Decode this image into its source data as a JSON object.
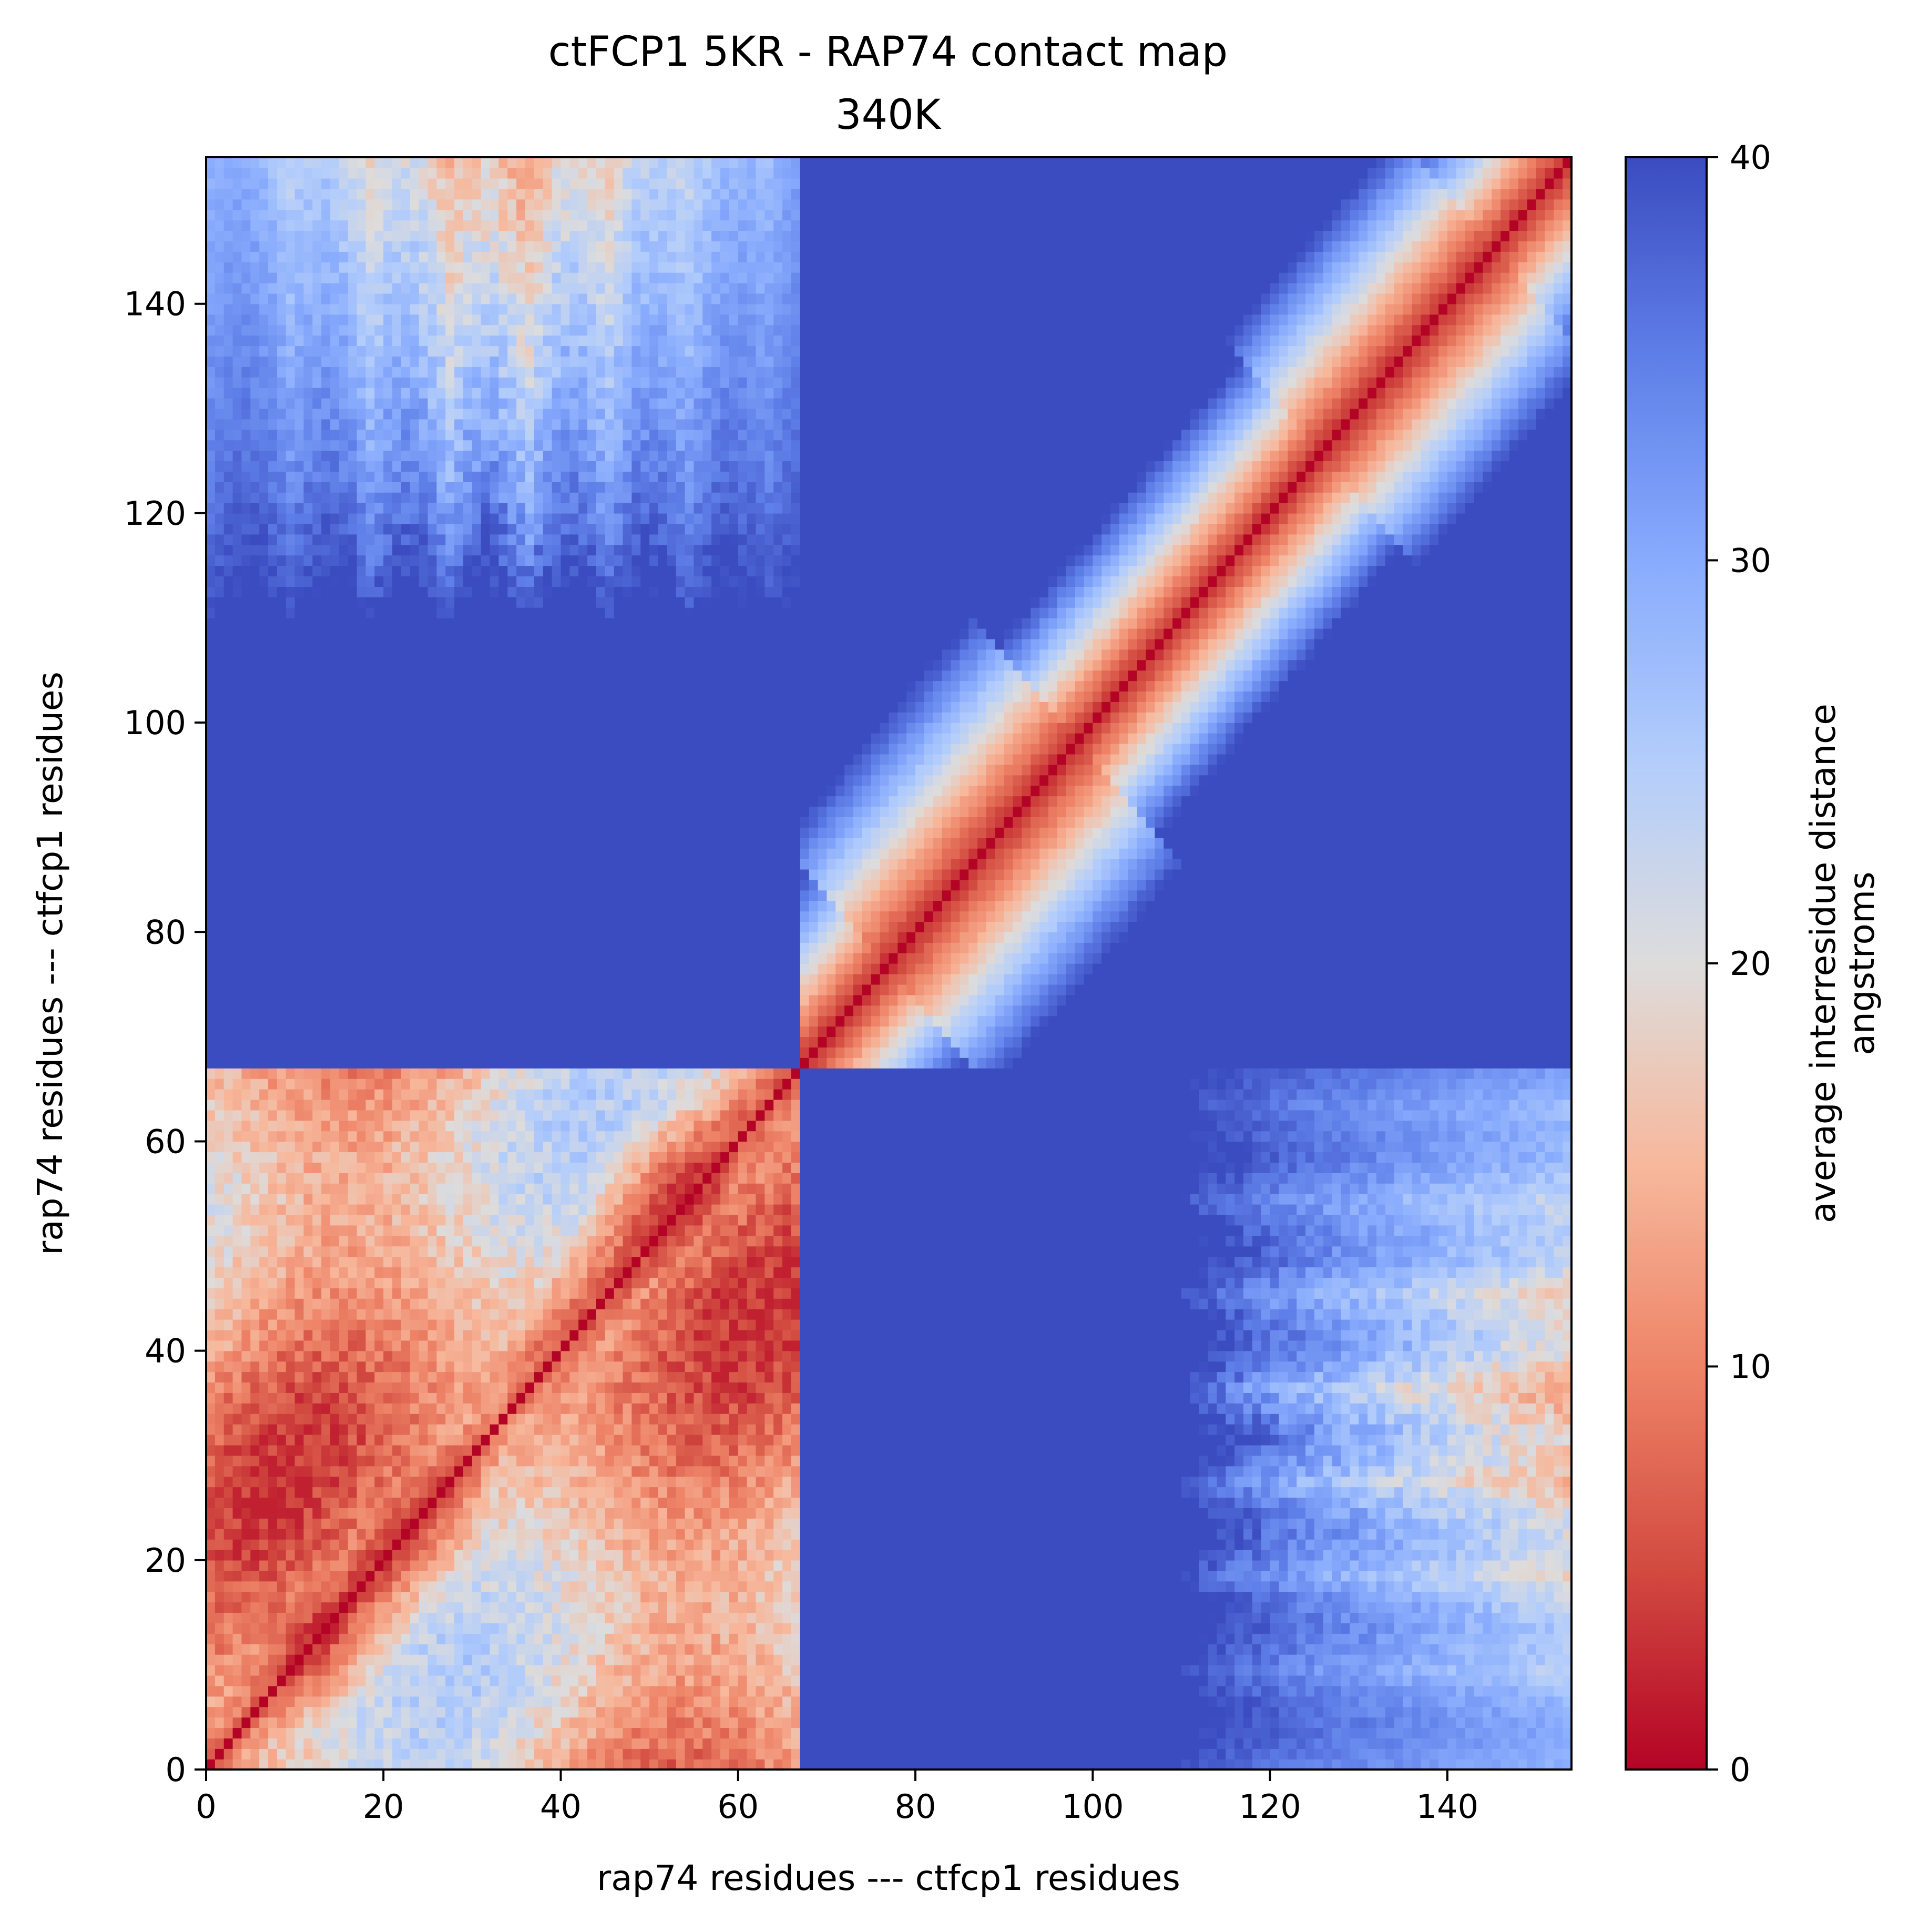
{
  "chart_data": {
    "type": "heatmap",
    "title": "ctFCP1 5KR - RAP74 contact map\n340K",
    "title_lines": [
      "ctFCP1 5KR - RAP74 contact map",
      "340K"
    ],
    "xlabel": "rap74 residues --- ctfcp1 residues",
    "ylabel": "rap74 residues --- ctfcp1 residues",
    "xlim": [
      0,
      154
    ],
    "ylim": [
      0,
      154
    ],
    "x_ticks": [
      0,
      20,
      40,
      60,
      80,
      100,
      120,
      140
    ],
    "x_tick_labels": [
      "0",
      "20",
      "40",
      "60",
      "80",
      "100",
      "120",
      "140"
    ],
    "y_ticks": [
      0,
      20,
      40,
      60,
      80,
      100,
      120,
      140
    ],
    "y_tick_labels": [
      "0",
      "20",
      "40",
      "60",
      "80",
      "100",
      "120",
      "140"
    ],
    "n_residues": 154,
    "segment_boundary": 67,
    "segments": [
      {
        "label": "rap74 residues",
        "start": 0,
        "end": 67
      },
      {
        "label": "ctfcp1 residues",
        "start": 67,
        "end": 154
      }
    ],
    "colormap": "coolwarm",
    "colormap_stops": [
      {
        "value": 0,
        "color": "#b40426"
      },
      {
        "value": 5,
        "color": "#d24b40"
      },
      {
        "value": 10,
        "color": "#ee8468"
      },
      {
        "value": 15,
        "color": "#f7b89c"
      },
      {
        "value": 20,
        "color": "#dddcdc"
      },
      {
        "value": 25,
        "color": "#b3cdfb"
      },
      {
        "value": 30,
        "color": "#88abfd"
      },
      {
        "value": 35,
        "color": "#5f7fe8"
      },
      {
        "value": 40,
        "color": "#3b4cc0"
      }
    ],
    "colorbar": {
      "label_lines": [
        "average interresidue distance",
        "angstroms"
      ],
      "range": [
        0,
        40
      ],
      "ticks": [
        0,
        10,
        20,
        30,
        40
      ],
      "tick_labels": [
        "0",
        "10",
        "20",
        "30",
        "40"
      ]
    },
    "features": {
      "diagonal_value": 0,
      "intra_rap74_typical_range": [
        5,
        28
      ],
      "intra_ctfcp1_band_halfwidth_residues": 12,
      "inter_block_background": 40,
      "inter_contact_region_x": [
        0,
        67
      ],
      "inter_contact_region_y": [
        110,
        154
      ],
      "inter_contact_region_mirror_x": [
        110,
        154
      ],
      "inter_contact_region_mirror_y": [
        0,
        67
      ]
    }
  }
}
